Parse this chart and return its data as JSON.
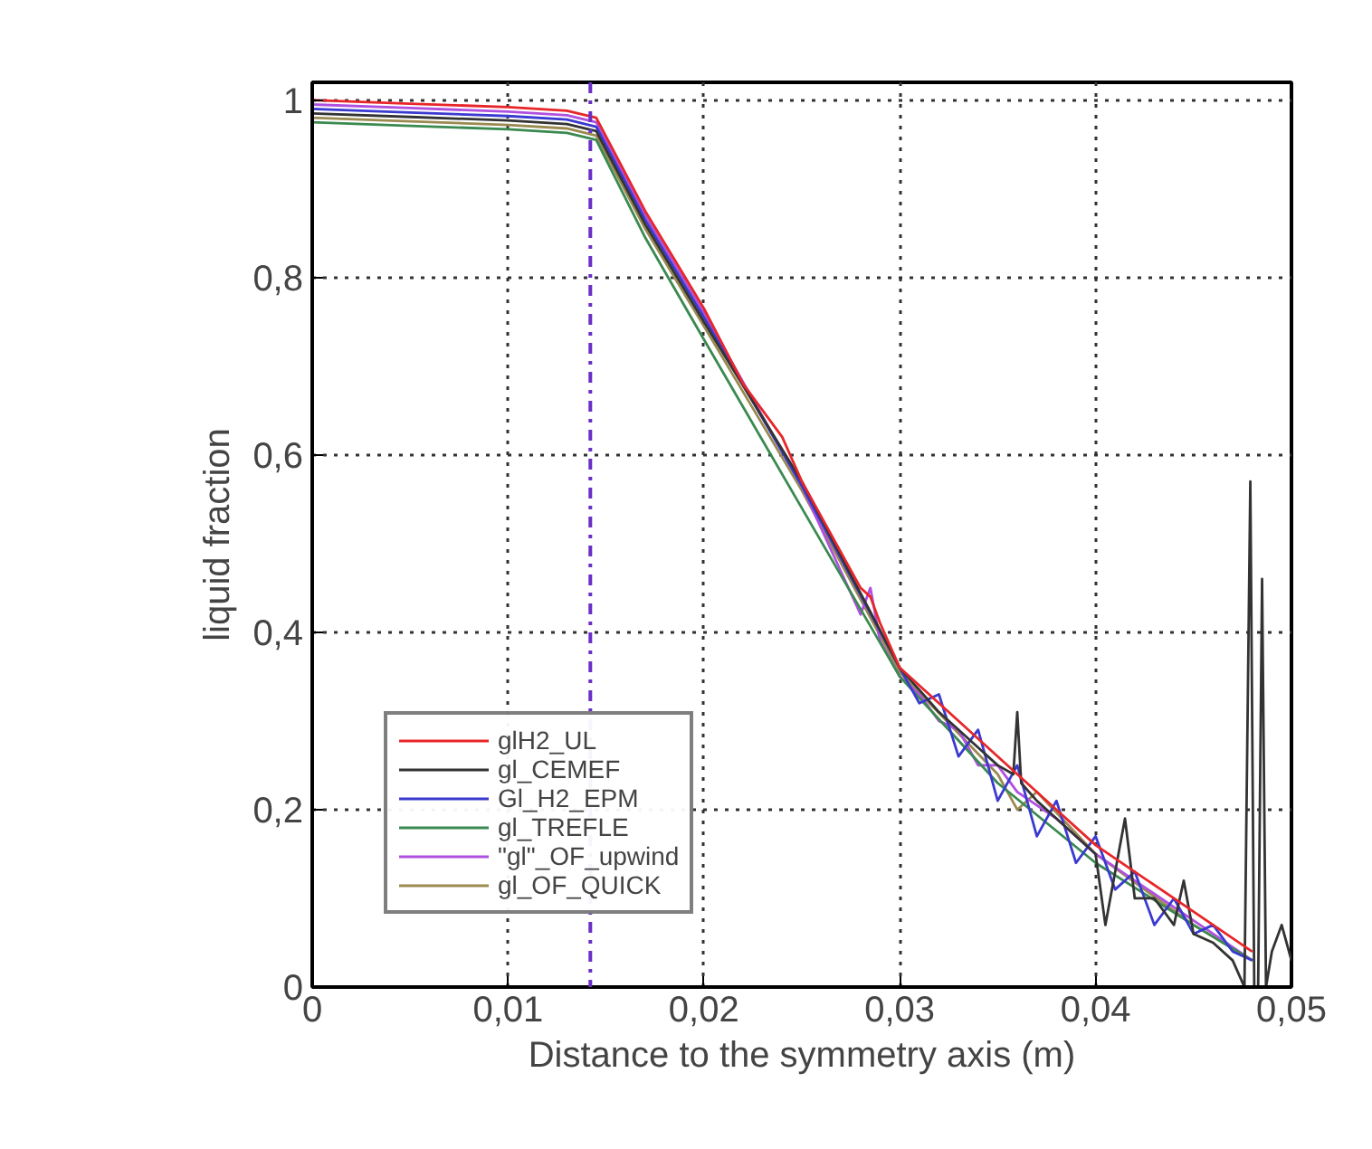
{
  "chart_data": {
    "type": "line",
    "xlabel": "Distance to the symmetry axis (m)",
    "ylabel": "liquid fraction",
    "xlim": [
      0,
      0.05
    ],
    "ylim": [
      0,
      1.02
    ],
    "xticks": [
      0,
      {
        "value": 0.01,
        "label": "0,01"
      },
      {
        "value": 0.02,
        "label": "0,02"
      },
      {
        "value": 0.03,
        "label": "0,03"
      },
      {
        "value": 0.04,
        "label": "0,04"
      },
      {
        "value": 0.05,
        "label": "0,05"
      }
    ],
    "yticks": [
      0,
      {
        "value": 0.2,
        "label": "0,2"
      },
      {
        "value": 0.4,
        "label": "0,4"
      },
      {
        "value": 0.6,
        "label": "0,6"
      },
      {
        "value": 0.8,
        "label": "0,8"
      },
      1
    ],
    "grid": true,
    "legend": "bottom left",
    "line_style": "solid",
    "ref_lines": [
      {
        "axis": "x",
        "value": 0.0142,
        "color": "#6a2fc8",
        "line_style": "dashdot"
      }
    ],
    "series": [
      {
        "name": "glH2_UL",
        "color": "#e8262a",
        "x": [
          0,
          0.005,
          0.01,
          0.013,
          0.0145,
          0.017,
          0.02,
          0.022,
          0.024,
          0.025,
          0.027,
          0.028,
          0.0285,
          0.029,
          0.03,
          0.032,
          0.034,
          0.036,
          0.038,
          0.04,
          0.042,
          0.044,
          0.046,
          0.048
        ],
        "values": [
          1.0,
          0.996,
          0.992,
          0.988,
          0.98,
          0.875,
          0.765,
          0.68,
          0.62,
          0.57,
          0.49,
          0.45,
          0.44,
          0.41,
          0.36,
          0.32,
          0.28,
          0.24,
          0.2,
          0.16,
          0.13,
          0.1,
          0.07,
          0.04
        ]
      },
      {
        "name": "gl_CEMEF",
        "color": "#333333",
        "x": [
          0,
          0.005,
          0.01,
          0.013,
          0.0145,
          0.017,
          0.02,
          0.025,
          0.03,
          0.032,
          0.034,
          0.035,
          0.0358,
          0.036,
          0.0362,
          0.037,
          0.038,
          0.04,
          0.0405,
          0.041,
          0.0415,
          0.042,
          0.043,
          0.044,
          0.0445,
          0.045,
          0.046,
          0.047,
          0.0476,
          0.0479,
          0.0481,
          0.0483,
          0.0485,
          0.0487,
          0.049,
          0.0495,
          0.05
        ],
        "values": [
          0.985,
          0.981,
          0.977,
          0.973,
          0.965,
          0.86,
          0.75,
          0.57,
          0.36,
          0.31,
          0.27,
          0.25,
          0.24,
          0.31,
          0.23,
          0.21,
          0.19,
          0.15,
          0.07,
          0.13,
          0.19,
          0.1,
          0.1,
          0.07,
          0.12,
          0.06,
          0.05,
          0.03,
          0.0,
          0.57,
          0.0,
          0.0,
          0.46,
          0.0,
          0.04,
          0.07,
          0.03
        ]
      },
      {
        "name": "Gl_H2_EPM",
        "color": "#3a3ad0",
        "x": [
          0,
          0.005,
          0.01,
          0.013,
          0.0145,
          0.017,
          0.02,
          0.025,
          0.03,
          0.031,
          0.032,
          0.033,
          0.034,
          0.035,
          0.036,
          0.037,
          0.038,
          0.039,
          0.04,
          0.041,
          0.042,
          0.043,
          0.044,
          0.045,
          0.046,
          0.047,
          0.048
        ],
        "values": [
          0.99,
          0.986,
          0.982,
          0.978,
          0.97,
          0.865,
          0.755,
          0.565,
          0.36,
          0.32,
          0.33,
          0.26,
          0.29,
          0.21,
          0.25,
          0.17,
          0.21,
          0.14,
          0.17,
          0.11,
          0.13,
          0.07,
          0.1,
          0.06,
          0.07,
          0.04,
          0.03
        ]
      },
      {
        "name": "gl_TREFLE",
        "color": "#3a8a50",
        "x": [
          0,
          0.005,
          0.01,
          0.013,
          0.0145,
          0.017,
          0.02,
          0.025,
          0.03,
          0.035,
          0.04,
          0.045,
          0.048
        ],
        "values": [
          0.975,
          0.971,
          0.967,
          0.963,
          0.955,
          0.845,
          0.73,
          0.54,
          0.35,
          0.23,
          0.14,
          0.07,
          0.03
        ]
      },
      {
        "name": "\"gl\"_OF_upwind",
        "color": "#b050e0",
        "x": [
          0,
          0.005,
          0.01,
          0.013,
          0.0145,
          0.017,
          0.02,
          0.025,
          0.028,
          0.0285,
          0.029,
          0.03,
          0.031,
          0.032,
          0.033,
          0.034,
          0.035,
          0.036,
          0.038,
          0.04,
          0.042,
          0.044,
          0.046,
          0.048
        ],
        "values": [
          0.995,
          0.991,
          0.987,
          0.983,
          0.975,
          0.87,
          0.76,
          0.565,
          0.42,
          0.45,
          0.39,
          0.35,
          0.33,
          0.3,
          0.29,
          0.25,
          0.25,
          0.22,
          0.19,
          0.15,
          0.12,
          0.09,
          0.06,
          0.03
        ]
      },
      {
        "name": "gl_OF_QUICK",
        "color": "#9a8a50",
        "x": [
          0,
          0.005,
          0.01,
          0.013,
          0.0145,
          0.017,
          0.02,
          0.025,
          0.03,
          0.035,
          0.036,
          0.037,
          0.04,
          0.045,
          0.048
        ],
        "values": [
          0.98,
          0.976,
          0.972,
          0.968,
          0.96,
          0.855,
          0.745,
          0.56,
          0.355,
          0.24,
          0.2,
          0.22,
          0.15,
          0.07,
          0.03
        ]
      }
    ]
  }
}
